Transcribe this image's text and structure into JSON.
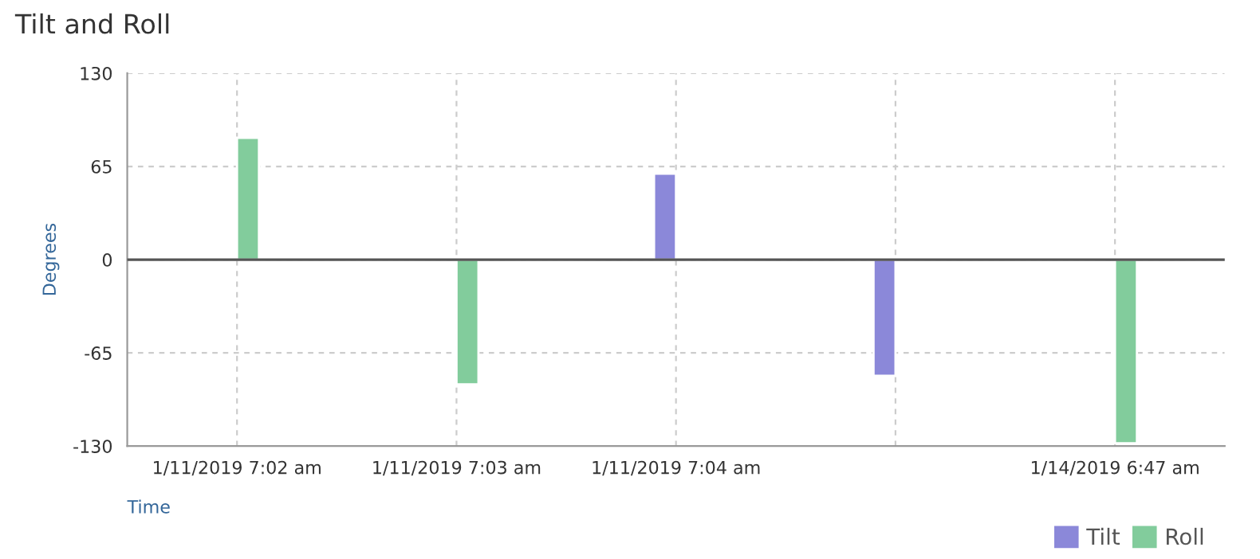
{
  "chart_data": {
    "type": "bar",
    "title": "Tilt and Roll",
    "xlabel": "Time",
    "ylabel": "Degrees",
    "categories": [
      "1/11/2019 7:02 am",
      "1/11/2019 7:03 am",
      "1/11/2019 7:04 am",
      null,
      "1/14/2019 6:47 am"
    ],
    "series": [
      {
        "name": "Tilt",
        "color": "#8b88d9",
        "values": [
          null,
          null,
          60,
          -81,
          null
        ]
      },
      {
        "name": "Roll",
        "color": "#82cc9c",
        "values": [
          85,
          -87,
          null,
          null,
          -128
        ]
      }
    ],
    "ylim": [
      -130,
      130
    ],
    "yticks": [
      -130,
      -65,
      0,
      65,
      130
    ],
    "ref_lines": [
      {
        "axis": "y",
        "value": 0,
        "color": "#555555"
      }
    ],
    "grid": true,
    "legend": "bottom right"
  }
}
